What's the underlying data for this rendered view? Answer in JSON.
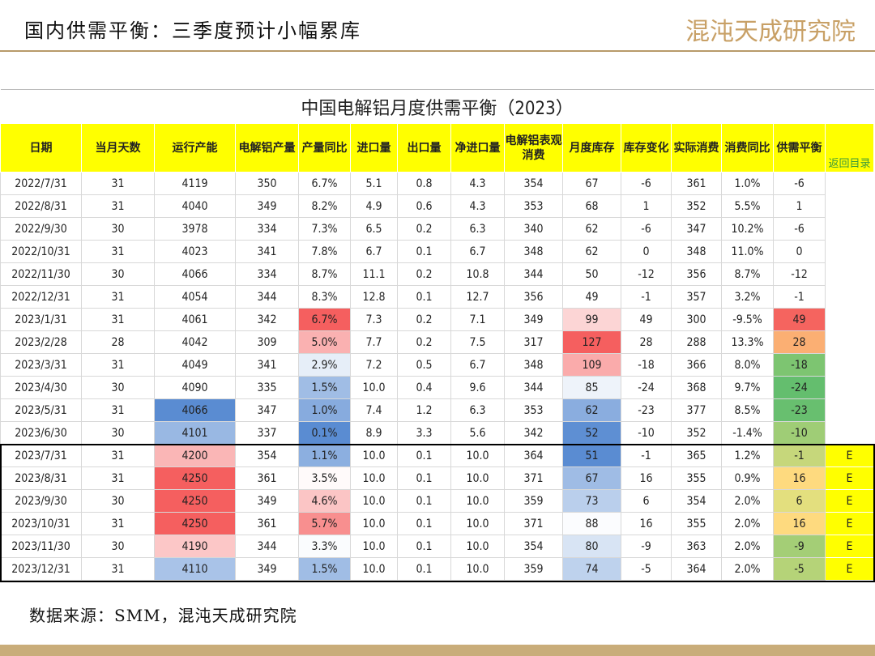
{
  "header": {
    "title": "国内供需平衡：三季度预计小幅累库",
    "logo": "混沌天成研究院"
  },
  "table": {
    "title": "中国电解铝月度供需平衡（2023）",
    "columns": [
      "日期",
      "当月天数",
      "运行产能",
      "电解铝产量",
      "产量同比",
      "进口量",
      "出口量",
      "净进口量",
      "电解铝表观消费",
      "月度库存",
      "库存变化",
      "实际消费",
      "消费同比",
      "供需平衡"
    ],
    "nav": "返回目录",
    "rows": [
      [
        "2022/7/31",
        "31",
        "4119",
        "350",
        "6.7%",
        "5.1",
        "0.8",
        "4.3",
        "354",
        "67",
        "-6",
        "361",
        "1.0%",
        "-6"
      ],
      [
        "2022/8/31",
        "31",
        "4040",
        "349",
        "8.2%",
        "4.9",
        "0.6",
        "4.3",
        "353",
        "68",
        "1",
        "352",
        "5.5%",
        "1"
      ],
      [
        "2022/9/30",
        "30",
        "3978",
        "334",
        "7.3%",
        "6.5",
        "0.2",
        "6.3",
        "340",
        "62",
        "-6",
        "347",
        "10.2%",
        "-6"
      ],
      [
        "2022/10/31",
        "31",
        "4023",
        "341",
        "7.8%",
        "6.7",
        "0.1",
        "6.7",
        "348",
        "62",
        "0",
        "348",
        "11.0%",
        "0"
      ],
      [
        "2022/11/30",
        "30",
        "4066",
        "334",
        "8.7%",
        "11.1",
        "0.2",
        "10.8",
        "344",
        "50",
        "-12",
        "356",
        "8.7%",
        "-12"
      ],
      [
        "2022/12/31",
        "31",
        "4054",
        "344",
        "8.3%",
        "12.8",
        "0.1",
        "12.7",
        "356",
        "49",
        "-1",
        "357",
        "3.2%",
        "-1"
      ],
      [
        "2023/1/31",
        "31",
        "4061",
        "342",
        "6.7%",
        "7.3",
        "0.2",
        "7.1",
        "349",
        "99",
        "49",
        "300",
        "-9.5%",
        "49"
      ],
      [
        "2023/2/28",
        "28",
        "4042",
        "309",
        "5.0%",
        "7.7",
        "0.2",
        "7.5",
        "317",
        "127",
        "28",
        "288",
        "13.3%",
        "28"
      ],
      [
        "2023/3/31",
        "31",
        "4049",
        "341",
        "2.9%",
        "7.2",
        "0.5",
        "6.7",
        "348",
        "109",
        "-18",
        "366",
        "8.0%",
        "-18"
      ],
      [
        "2023/4/30",
        "30",
        "4090",
        "335",
        "1.5%",
        "10.0",
        "0.4",
        "9.6",
        "344",
        "85",
        "-24",
        "368",
        "9.7%",
        "-24"
      ],
      [
        "2023/5/31",
        "31",
        "4066",
        "347",
        "1.0%",
        "7.4",
        "1.2",
        "6.3",
        "353",
        "62",
        "-23",
        "377",
        "8.5%",
        "-23"
      ],
      [
        "2023/6/30",
        "30",
        "4101",
        "337",
        "0.1%",
        "8.9",
        "3.3",
        "5.6",
        "342",
        "52",
        "-10",
        "352",
        "-1.4%",
        "-10"
      ],
      [
        "2023/7/31",
        "31",
        "4200",
        "354",
        "1.1%",
        "10.0",
        "0.1",
        "10.0",
        "364",
        "51",
        "-1",
        "365",
        "1.2%",
        "-1",
        "E"
      ],
      [
        "2023/8/31",
        "31",
        "4250",
        "361",
        "3.5%",
        "10.0",
        "0.1",
        "10.0",
        "371",
        "67",
        "16",
        "355",
        "0.9%",
        "16",
        "E"
      ],
      [
        "2023/9/30",
        "30",
        "4250",
        "349",
        "4.6%",
        "10.0",
        "0.1",
        "10.0",
        "359",
        "73",
        "6",
        "354",
        "2.0%",
        "6",
        "E"
      ],
      [
        "2023/10/31",
        "31",
        "4250",
        "361",
        "5.7%",
        "10.0",
        "0.1",
        "10.0",
        "371",
        "88",
        "16",
        "355",
        "2.0%",
        "16",
        "E"
      ],
      [
        "2023/11/30",
        "30",
        "4190",
        "344",
        "3.3%",
        "10.0",
        "0.1",
        "10.0",
        "354",
        "80",
        "-9",
        "363",
        "2.0%",
        "-9",
        "E"
      ],
      [
        "2023/12/31",
        "31",
        "4110",
        "349",
        "1.5%",
        "10.0",
        "0.1",
        "10.0",
        "359",
        "74",
        "-5",
        "364",
        "2.0%",
        "-5",
        "E"
      ]
    ]
  },
  "footer": {
    "source": "数据来源：SMM，混沌天成研究院"
  }
}
